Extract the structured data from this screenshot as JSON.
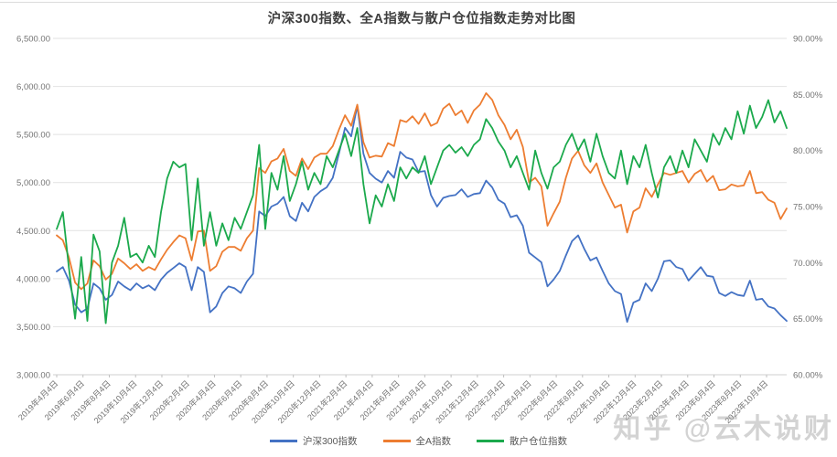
{
  "title": "沪深300指数、全A指数与散户仓位指数走势对比图",
  "watermark": "知乎 @云木说财",
  "chart_data": {
    "type": "line",
    "title": "沪深300指数、全A指数与散户仓位指数走势对比图",
    "grid": true,
    "legend_position": "bottom",
    "gridline_color": "#e2e2e2",
    "axis_text_color": "#737373",
    "left_axis": {
      "min": 3000,
      "max": 6500,
      "step": 500,
      "ticks": [
        "6,500.00",
        "6,000.00",
        "5,500.00",
        "5,000.00",
        "4,500.00",
        "4,000.00",
        "3,500.00",
        "3,000.00"
      ]
    },
    "right_axis": {
      "min": 60,
      "max": 90,
      "step": 5,
      "ticks": [
        "90.00%",
        "85.00%",
        "80.00%",
        "75.00%",
        "70.00%",
        "65.00%",
        "60.00%"
      ]
    },
    "x_tick_labels": [
      "2019年4月4日",
      "2019年6月4日",
      "2019年8月4日",
      "2019年10月4日",
      "2019年12月4日",
      "2020年2月4日",
      "2020年4月4日",
      "2020年6月4日",
      "2020年8月4日",
      "2020年10月4日",
      "2020年12月4日",
      "2021年2月4日",
      "2021年4月4日",
      "2021年6月4日",
      "2021年8月4日",
      "2021年10月4日",
      "2021年12月4日",
      "2022年2月4日",
      "2022年4月4日",
      "2022年6月4日",
      "2022年8月4日",
      "2022年10月4日",
      "2022年12月4日",
      "2023年2月4日",
      "2023年4月4日",
      "2023年6月4日",
      "2023年8月4日",
      "2023年10月4日"
    ],
    "series": [
      {
        "name": "沪深300指数",
        "axis": "left",
        "color": "#4472C4",
        "values": [
          4075,
          4120,
          3980,
          3730,
          3650,
          3690,
          3950,
          3900,
          3780,
          3830,
          3970,
          3920,
          3880,
          3950,
          3900,
          3930,
          3880,
          3990,
          4060,
          4110,
          4160,
          4120,
          3880,
          4120,
          4070,
          3650,
          3710,
          3850,
          3920,
          3900,
          3850,
          3970,
          4050,
          4700,
          4650,
          4750,
          4780,
          4850,
          4650,
          4600,
          4790,
          4700,
          4850,
          4910,
          4950,
          5050,
          5300,
          5570,
          5480,
          5800,
          5300,
          5100,
          5040,
          5000,
          5120,
          5050,
          5320,
          5260,
          5240,
          5110,
          5120,
          4870,
          4750,
          4840,
          4860,
          4870,
          4930,
          4850,
          4880,
          4890,
          5020,
          4950,
          4820,
          4780,
          4640,
          4660,
          4550,
          4270,
          4220,
          4170,
          3920,
          3990,
          4080,
          4240,
          4390,
          4450,
          4310,
          4190,
          4220,
          4080,
          3950,
          3870,
          3840,
          3550,
          3750,
          3780,
          3950,
          3870,
          4000,
          4180,
          4190,
          4120,
          4100,
          3980,
          4050,
          4120,
          4030,
          4020,
          3850,
          3820,
          3860,
          3830,
          3820,
          3980,
          3780,
          3790,
          3710,
          3690,
          3620,
          3560
        ]
      },
      {
        "name": "全A指数",
        "axis": "left",
        "color": "#ED7D31",
        "values": [
          4450,
          4400,
          4220,
          3960,
          3890,
          3950,
          4190,
          4130,
          3990,
          4050,
          4210,
          4160,
          4100,
          4150,
          4080,
          4120,
          4090,
          4200,
          4300,
          4380,
          4450,
          4420,
          4190,
          4490,
          4500,
          4080,
          4130,
          4280,
          4330,
          4330,
          4290,
          4420,
          4500,
          5150,
          5100,
          5220,
          5250,
          5350,
          5120,
          5070,
          5250,
          5140,
          5260,
          5300,
          5300,
          5380,
          5550,
          5700,
          5590,
          5810,
          5420,
          5260,
          5280,
          5270,
          5410,
          5380,
          5650,
          5630,
          5690,
          5610,
          5720,
          5590,
          5620,
          5770,
          5820,
          5700,
          5750,
          5620,
          5750,
          5810,
          5930,
          5860,
          5700,
          5600,
          5450,
          5550,
          5370,
          5000,
          5050,
          4960,
          4550,
          4680,
          4800,
          5050,
          5250,
          5330,
          5180,
          5100,
          5200,
          5000,
          4870,
          4740,
          4770,
          4480,
          4700,
          4740,
          4940,
          4850,
          4980,
          5100,
          5080,
          5100,
          5120,
          5000,
          5090,
          5130,
          5010,
          5070,
          4920,
          4930,
          4980,
          4960,
          4970,
          5120,
          4890,
          4900,
          4820,
          4790,
          4620,
          4730
        ]
      },
      {
        "name": "散户仓位指数",
        "axis": "right",
        "color": "#1BA94C",
        "values": [
          73.0,
          74.5,
          69.5,
          65.0,
          70.5,
          64.8,
          72.5,
          71.0,
          64.6,
          70.0,
          71.5,
          74.0,
          70.5,
          70.8,
          70.0,
          71.5,
          70.5,
          74.5,
          77.5,
          79.0,
          78.5,
          78.8,
          72.0,
          77.5,
          71.5,
          74.5,
          71.5,
          73.5,
          72.0,
          74.0,
          73.0,
          74.5,
          76.0,
          80.5,
          73.0,
          78.0,
          76.5,
          79.5,
          75.5,
          77.0,
          79.0,
          76.5,
          78.0,
          77.0,
          79.5,
          78.5,
          80.0,
          81.5,
          79.5,
          82.0,
          77.0,
          73.5,
          76.0,
          75.0,
          77.0,
          75.5,
          78.5,
          77.5,
          78.5,
          78.0,
          79.5,
          77.0,
          78.5,
          80.0,
          80.5,
          79.8,
          80.3,
          79.5,
          80.5,
          81.0,
          82.8,
          82.0,
          80.8,
          80.0,
          78.5,
          79.5,
          78.0,
          76.5,
          80.0,
          78.0,
          76.6,
          78.5,
          79.0,
          80.5,
          81.5,
          80.0,
          81.0,
          79.0,
          81.5,
          79.5,
          78.0,
          77.5,
          80.0,
          77.0,
          79.5,
          78.5,
          80.5,
          78.0,
          75.8,
          78.5,
          79.5,
          78.0,
          80.0,
          78.5,
          81.0,
          80.0,
          79.0,
          81.5,
          80.5,
          82.0,
          81.0,
          83.5,
          81.5,
          84.0,
          82.0,
          83.0,
          84.5,
          82.5,
          83.5,
          82.0
        ]
      }
    ]
  }
}
